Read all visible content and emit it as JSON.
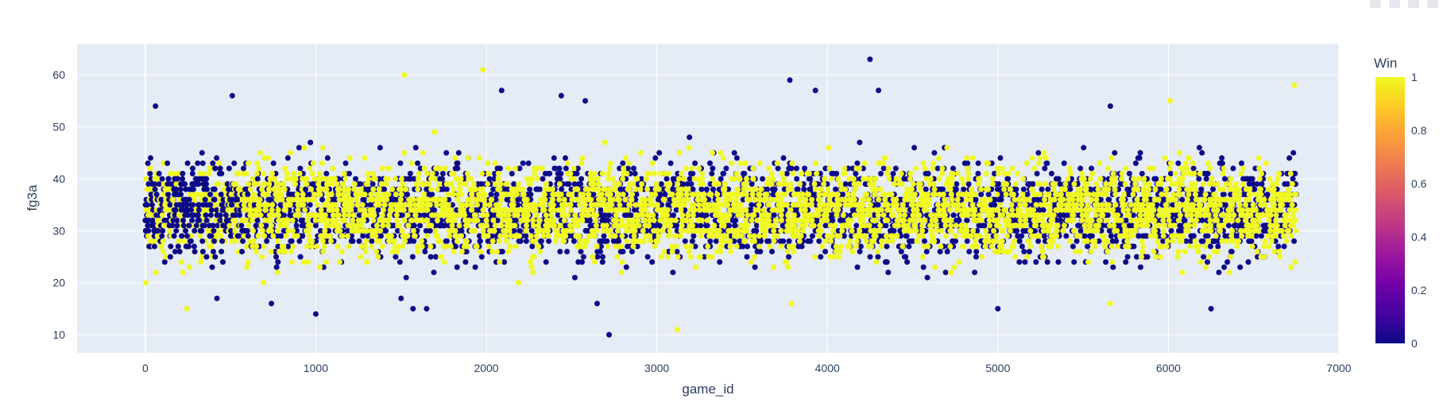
{
  "chart_data": {
    "type": "scatter",
    "title": "",
    "xlabel": "game_id",
    "ylabel": "fg3a",
    "xlim": [
      -400,
      7000
    ],
    "ylim": [
      6.5,
      66
    ],
    "x_ticks": [
      0,
      1000,
      2000,
      3000,
      4000,
      5000,
      6000,
      7000
    ],
    "y_ticks": [
      10,
      20,
      30,
      40,
      50,
      60
    ],
    "x_tick_labels": [
      "0",
      "1000",
      "2000",
      "3000",
      "4000",
      "5000",
      "6000",
      "7000"
    ],
    "y_tick_labels": [
      "10",
      "20",
      "30",
      "40",
      "50",
      "60"
    ],
    "grid": true,
    "background": "#e5ecf6",
    "color_var": "Win",
    "colorbar": {
      "title": "Win",
      "range": [
        0,
        1
      ],
      "ticks": [
        0,
        0.2,
        0.4,
        0.6,
        0.8,
        1
      ],
      "tick_labels": [
        "0",
        "0.2",
        "0.4",
        "0.6",
        "0.8",
        "1"
      ],
      "colorscale": [
        "#0d0887",
        "#46039f",
        "#7201a8",
        "#9c179e",
        "#bd3786",
        "#d8576b",
        "#ed7953",
        "#fb9f3a",
        "#fdca26",
        "#f0f921"
      ]
    },
    "marker_colors": {
      "win_1": "#f0f921",
      "win_0": "#0d0887"
    },
    "points_summary": {
      "n_points": 6750,
      "x_range": [
        0,
        6750
      ],
      "y_typical_range": [
        20,
        48
      ],
      "y_center": 34
    },
    "outliers": [
      {
        "x": 4250,
        "y": 63,
        "win": 0
      },
      {
        "x": 1980,
        "y": 61,
        "win": 1
      },
      {
        "x": 1520,
        "y": 60,
        "win": 1
      },
      {
        "x": 3780,
        "y": 59,
        "win": 0
      },
      {
        "x": 6740,
        "y": 58,
        "win": 1
      },
      {
        "x": 3930,
        "y": 57,
        "win": 0
      },
      {
        "x": 2090,
        "y": 57,
        "win": 0
      },
      {
        "x": 4300,
        "y": 57,
        "win": 0
      },
      {
        "x": 510,
        "y": 56,
        "win": 0
      },
      {
        "x": 2440,
        "y": 56,
        "win": 0
      },
      {
        "x": 6010,
        "y": 55,
        "win": 1
      },
      {
        "x": 2580,
        "y": 55,
        "win": 0
      },
      {
        "x": 60,
        "y": 54,
        "win": 0
      },
      {
        "x": 5660,
        "y": 54,
        "win": 0
      },
      {
        "x": 1000,
        "y": 14,
        "win": 0
      },
      {
        "x": 5000,
        "y": 15,
        "win": 0
      },
      {
        "x": 6250,
        "y": 15,
        "win": 0
      },
      {
        "x": 1650,
        "y": 15,
        "win": 0
      },
      {
        "x": 1570,
        "y": 15,
        "win": 0
      },
      {
        "x": 245,
        "y": 15,
        "win": 1
      },
      {
        "x": 3120,
        "y": 11,
        "win": 1
      },
      {
        "x": 2720,
        "y": 10,
        "win": 0
      },
      {
        "x": 1500,
        "y": 17,
        "win": 0
      },
      {
        "x": 420,
        "y": 17,
        "win": 0
      },
      {
        "x": 2650,
        "y": 16,
        "win": 0
      },
      {
        "x": 5660,
        "y": 16,
        "win": 1
      },
      {
        "x": 3790,
        "y": 16,
        "win": 1
      },
      {
        "x": 740,
        "y": 16,
        "win": 0
      }
    ]
  }
}
